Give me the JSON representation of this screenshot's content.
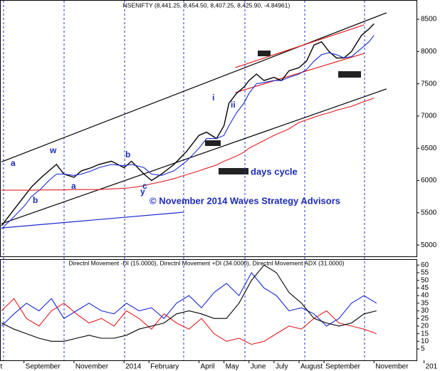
{
  "chart_data": [
    {
      "type": "line",
      "title": "NSENIFTY (8,441.25, 8,454.50, 8,407.25, 8,425.90, -4.84961)",
      "x": [
        0.1,
        0.5,
        1,
        1.3,
        1.7,
        2,
        2.3,
        2.6,
        3,
        3.3,
        3.7,
        4,
        4.5,
        5,
        5.3,
        5.8,
        6.1,
        6.5,
        7,
        7.5,
        8,
        8.3,
        8.7,
        9,
        9.2,
        9.5,
        9.8,
        10,
        10.3,
        10.6,
        11,
        11.3,
        11.6,
        12,
        12.3,
        12.6,
        12.9,
        13.2,
        13.5,
        13.8,
        14.1,
        14.5,
        14.8,
        15
      ],
      "series": [
        {
          "color": "#000000",
          "values": [
            5300,
            5500,
            5750,
            5900,
            6050,
            6150,
            6250,
            6100,
            6050,
            6150,
            6200,
            6250,
            6300,
            6200,
            6300,
            6100,
            6000,
            6100,
            6250,
            6450,
            6700,
            6750,
            6650,
            6850,
            7200,
            7350,
            7450,
            7550,
            7650,
            7550,
            7600,
            7550,
            7700,
            7750,
            7850,
            8100,
            8150,
            8000,
            7900,
            7900,
            8000,
            8250,
            8350,
            8430
          ]
        },
        {
          "color": "#1a2bd0",
          "values": [
            5250,
            5400,
            5600,
            5750,
            5880,
            6000,
            6100,
            6100,
            6080,
            6100,
            6150,
            6200,
            6250,
            6230,
            6250,
            6200,
            6100,
            6080,
            6150,
            6300,
            6500,
            6650,
            6650,
            6700,
            6850,
            7050,
            7200,
            7350,
            7500,
            7520,
            7550,
            7550,
            7600,
            7650,
            7720,
            7850,
            7950,
            7980,
            7950,
            7900,
            7920,
            8050,
            8150,
            8250
          ]
        },
        {
          "color": "#e02020",
          "values": [
            5850,
            5850,
            5850,
            5850,
            5855,
            5855,
            5855,
            5855,
            5860,
            5860,
            5860,
            5860,
            5870,
            5880,
            5890,
            5920,
            5950,
            5980,
            6030,
            6090,
            6150,
            6190,
            6240,
            6300,
            6330,
            6380,
            6440,
            6500,
            6560,
            6620,
            6700,
            6750,
            6800,
            6900,
            6940,
            6980,
            7020,
            7050,
            7090,
            7120,
            7150,
            7210,
            7250,
            7280
          ]
        }
      ],
      "trendlines": [
        {
          "x": [
            0.1,
            15.5
          ],
          "y": [
            6290,
            8600
          ],
          "color": "#000000"
        },
        {
          "x": [
            0.1,
            15.5
          ],
          "y": [
            5330,
            7420
          ],
          "color": "#000000"
        },
        {
          "x": [
            9.45,
            14.6
          ],
          "y": [
            7750,
            8412
          ],
          "color": "#e02020"
        },
        {
          "x": [
            9.45,
            14.6
          ],
          "y": [
            7363,
            7970
          ],
          "color": "#e02020"
        },
        {
          "x": [
            0.1,
            7.4
          ],
          "y": [
            5265,
            5510
          ],
          "color": "#1a2bd0"
        }
      ],
      "annotations": [
        "days cycle",
        "© November 2014 Waves Strategy Advisors",
        "a",
        "w",
        "a",
        "b",
        "b",
        "c",
        "y",
        "i",
        "ii"
      ],
      "xlim": [
        0.07,
        16.7
      ],
      "ylim": [
        4825,
        8765
      ],
      "yticks": [
        5000,
        5500,
        6000,
        6500,
        7000,
        7500,
        8000,
        8500
      ]
    },
    {
      "type": "line",
      "title": "Directnl Movement -DI (15.0000), Directnl Movement +DI (34.0000), Directnl Movement ADX (31.0000)",
      "x": [
        0.1,
        0.6,
        1.1,
        1.6,
        2.1,
        2.6,
        3.1,
        3.6,
        4.1,
        4.6,
        5.1,
        5.6,
        6.1,
        6.6,
        7.1,
        7.6,
        8.1,
        8.6,
        9.1,
        9.6,
        10.1,
        10.6,
        11.1,
        11.6,
        12.1,
        12.6,
        13.1,
        13.6,
        14.1,
        14.6,
        15.1
      ],
      "series": [
        {
          "color": "#e02020",
          "values": [
            30,
            38,
            25,
            20,
            30,
            35,
            28,
            22,
            25,
            20,
            30,
            25,
            18,
            28,
            22,
            18,
            25,
            15,
            10,
            12,
            8,
            10,
            15,
            20,
            18,
            25,
            30,
            22,
            20,
            18,
            15
          ]
        },
        {
          "color": "#1a2bd0",
          "values": [
            20,
            28,
            35,
            30,
            38,
            25,
            30,
            35,
            30,
            28,
            35,
            30,
            32,
            25,
            35,
            40,
            32,
            42,
            48,
            40,
            55,
            45,
            40,
            30,
            32,
            28,
            20,
            25,
            35,
            40,
            35
          ]
        },
        {
          "color": "#000000",
          "values": [
            22,
            18,
            15,
            12,
            10,
            10,
            12,
            14,
            12,
            12,
            14,
            18,
            20,
            22,
            28,
            30,
            28,
            25,
            25,
            35,
            50,
            60,
            55,
            42,
            35,
            25,
            22,
            20,
            22,
            28,
            30
          ]
        }
      ],
      "xlim": [
        0.07,
        16.7
      ],
      "ylim": [
        -2,
        62
      ],
      "yticks": [
        5,
        10,
        15,
        20,
        25,
        30,
        35,
        40,
        45,
        50,
        55,
        60
      ],
      "xticks": [
        {
          "value": 0,
          "label": "t"
        },
        {
          "value": 1,
          "label": "September"
        },
        {
          "value": 3,
          "label": "November"
        },
        {
          "value": 5,
          "label": "2014"
        },
        {
          "value": 6,
          "label": "February"
        },
        {
          "value": 8,
          "label": "April"
        },
        {
          "value": 9,
          "label": "May"
        },
        {
          "value": 10,
          "label": "June"
        },
        {
          "value": 11,
          "label": "July"
        },
        {
          "value": 12,
          "label": "August"
        },
        {
          "value": 13,
          "label": "September"
        },
        {
          "value": 15,
          "label": "November"
        },
        {
          "value": 17,
          "label": "201"
        }
      ]
    }
  ]
}
